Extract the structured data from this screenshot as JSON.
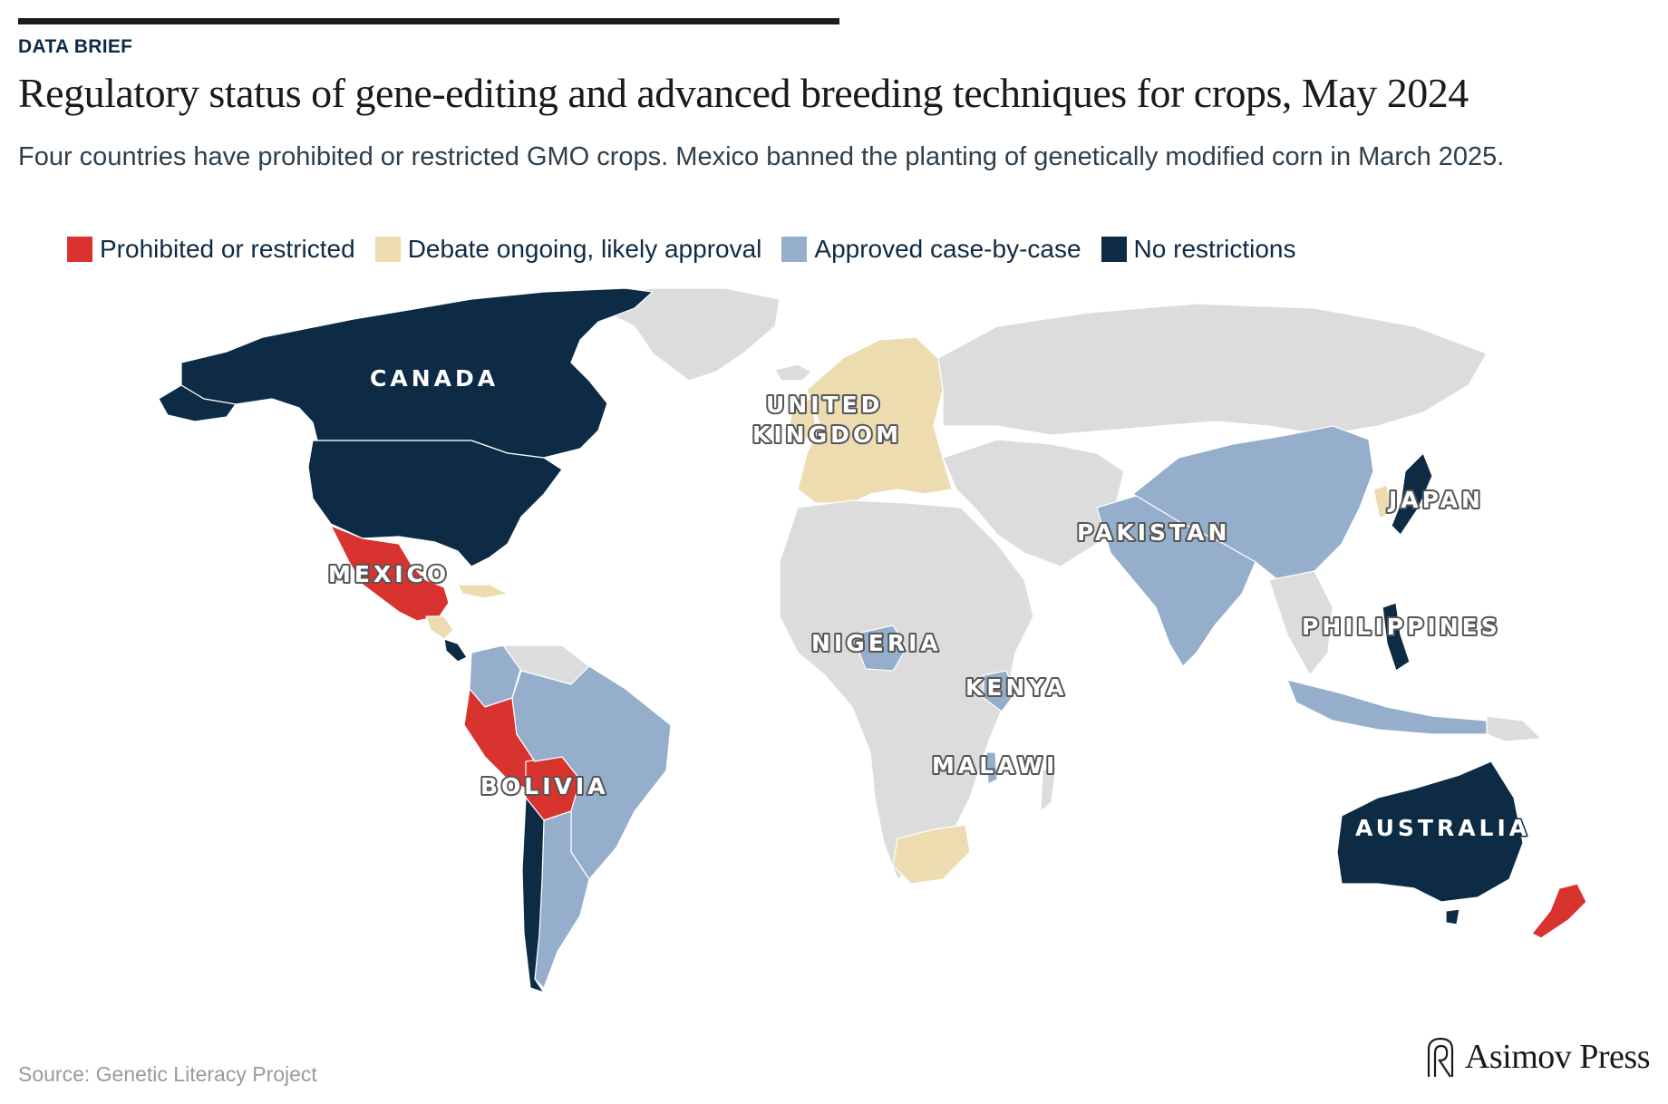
{
  "header": {
    "kicker": "DATA BRIEF",
    "title": "Regulatory status of gene-editing and advanced breeding techniques for crops, May 2024",
    "subtitle": "Four countries have prohibited or restricted GMO crops. Mexico banned the planting of genetically modified corn in March 2025."
  },
  "legend": [
    {
      "label": "Prohibited or restricted",
      "color": "#d9332f"
    },
    {
      "label": "Debate ongoing, likely approval",
      "color": "#ecdcb0"
    },
    {
      "label": "Approved case-by-case",
      "color": "#94aecb"
    },
    {
      "label": "No restrictions",
      "color": "#0d2b45"
    }
  ],
  "colors": {
    "no_data": "#dcdcdc",
    "border": "#ffffff"
  },
  "map_labels": {
    "canada": "CANADA",
    "united_kingdom_1": "UNITED",
    "united_kingdom_2": "KINGDOM",
    "mexico": "MEXICO",
    "bolivia": "BOLIVIA",
    "nigeria": "NIGERIA",
    "kenya": "KENYA",
    "malawi": "MALAWI",
    "pakistan": "PAKISTAN",
    "japan": "JAPAN",
    "philippines": "PHILIPPINES",
    "australia": "AUSTRALIA"
  },
  "footer": {
    "source": "Source: Genetic Literacy Project",
    "brand": "Asimov Press",
    "logo_icon": "asimov-press-logo-icon"
  }
}
